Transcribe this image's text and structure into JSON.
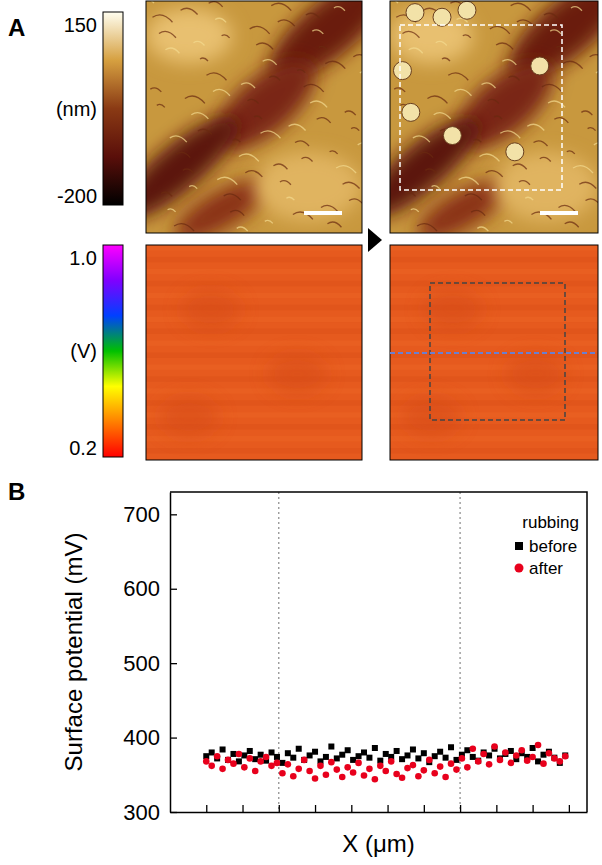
{
  "chart_data": [
    {
      "type": "image",
      "panel_label": "A",
      "colorbars": [
        {
          "range": [
            -200,
            150
          ],
          "ticks": [
            -200,
            150
          ],
          "unit": "(nm)",
          "colors": [
            "#000000",
            "#5a0f0a",
            "#8a3a14",
            "#d6a040",
            "#fffef0"
          ]
        },
        {
          "range": [
            0.2,
            1
          ],
          "ticks": [
            0.2,
            {
              "value": 1,
              "label": "1.0"
            }
          ],
          "unit": "(V)",
          "colors": [
            "#ff0000",
            "#ff8000",
            "#ffff00",
            "#00c000",
            "#0040ff",
            "#8000ff",
            "#ff00ff"
          ]
        }
      ]
    },
    {
      "type": "scatter",
      "panel_label": "B",
      "x_label": "X (μm)",
      "y_label": "Surface potential (mV)",
      "xlim": [
        -1,
        10.5
      ],
      "xticks": [
        0,
        1,
        2,
        3,
        4,
        5,
        6,
        7,
        8,
        9,
        10
      ],
      "ylim": [
        300,
        730
      ],
      "yticks": [
        300,
        400,
        500,
        600,
        700
      ],
      "tick_labels": "y",
      "legend": "upper right",
      "legend_title": "rubbing",
      "vlines": [
        2,
        7
      ],
      "x": [
        0,
        0.15,
        0.3,
        0.45,
        0.6,
        0.75,
        0.9,
        1.05,
        1.2,
        1.35,
        1.5,
        1.65,
        1.8,
        1.95,
        2.1,
        2.25,
        2.4,
        2.55,
        2.7,
        2.85,
        3,
        3.15,
        3.3,
        3.45,
        3.6,
        3.75,
        3.9,
        4.05,
        4.2,
        4.35,
        4.5,
        4.65,
        4.8,
        4.95,
        5.1,
        5.25,
        5.4,
        5.55,
        5.7,
        5.85,
        6,
        6.15,
        6.3,
        6.45,
        6.6,
        6.75,
        6.9,
        7.05,
        7.2,
        7.35,
        7.5,
        7.65,
        7.8,
        7.95,
        8.1,
        8.25,
        8.4,
        8.55,
        8.7,
        8.85,
        9,
        9.15,
        9.3,
        9.45,
        9.6,
        9.75,
        9.9
      ],
      "series": [
        {
          "name": "before",
          "color": "#000000",
          "marker": "square",
          "values": [
            375,
            380,
            372,
            384,
            370,
            378,
            368,
            376,
            382,
            371,
            377,
            369,
            380,
            374,
            366,
            379,
            373,
            385,
            370,
            376,
            381,
            368,
            374,
            388,
            372,
            377,
            383,
            370,
            375,
            380,
            373,
            386,
            369,
            378,
            374,
            382,
            371,
            376,
            384,
            372,
            379,
            367,
            375,
            381,
            373,
            387,
            370,
            377,
            383,
            374,
            369,
            380,
            376,
            385,
            372,
            378,
            382,
            371,
            379,
            374,
            386,
            368,
            377,
            381,
            373,
            366,
            376
          ]
        },
        {
          "name": "after",
          "color": "#e8001c",
          "marker": "circle",
          "values": [
            368,
            362,
            375,
            358,
            370,
            365,
            378,
            360,
            372,
            355,
            368,
            374,
            362,
            366,
            352,
            364,
            348,
            358,
            370,
            355,
            345,
            362,
            350,
            367,
            357,
            347,
            360,
            353,
            366,
            349,
            358,
            344,
            362,
            355,
            368,
            351,
            346,
            359,
            363,
            348,
            356,
            370,
            352,
            361,
            347,
            365,
            357,
            372,
            360,
            385,
            368,
            378,
            364,
            388,
            370,
            380,
            366,
            376,
            383,
            369,
            374,
            390,
            365,
            379,
            372,
            368,
            375
          ]
        }
      ]
    }
  ]
}
